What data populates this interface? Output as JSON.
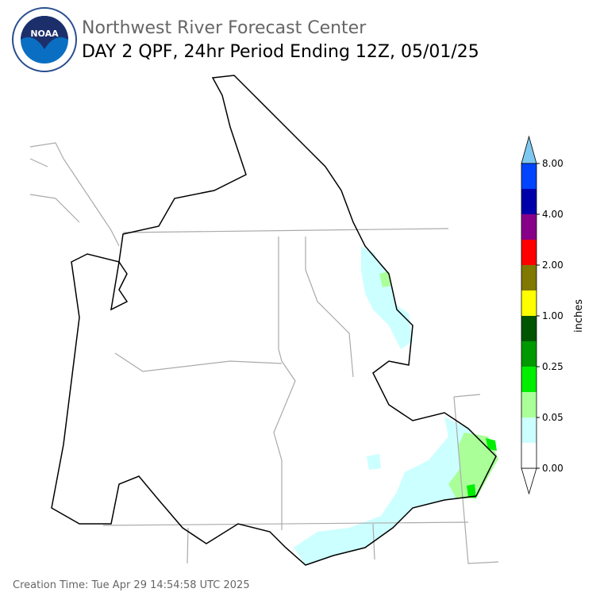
{
  "header": {
    "logo": "NOAA",
    "agency": "Northwest River Forecast Center",
    "title": "DAY 2 QPF, 24hr Period Ending 12Z, 05/01/25"
  },
  "colorbar": {
    "label": "inches",
    "ticks": [
      "0.00",
      "0.05",
      "0.25",
      "1.00",
      "2.00",
      "4.00",
      "8.00"
    ],
    "colors": [
      "#ffffff",
      "#ccffff",
      "#aaff99",
      "#00ee00",
      "#009900",
      "#005500",
      "#ffff00",
      "#807800",
      "#ff0000",
      "#880088",
      "#0000aa",
      "#0044ff"
    ],
    "under_color": "#ffffff",
    "over_color": "#7ec8f0"
  },
  "footer": {
    "creation": "Creation Time: Tue Apr 29 14:54:58 UTC 2025"
  }
}
